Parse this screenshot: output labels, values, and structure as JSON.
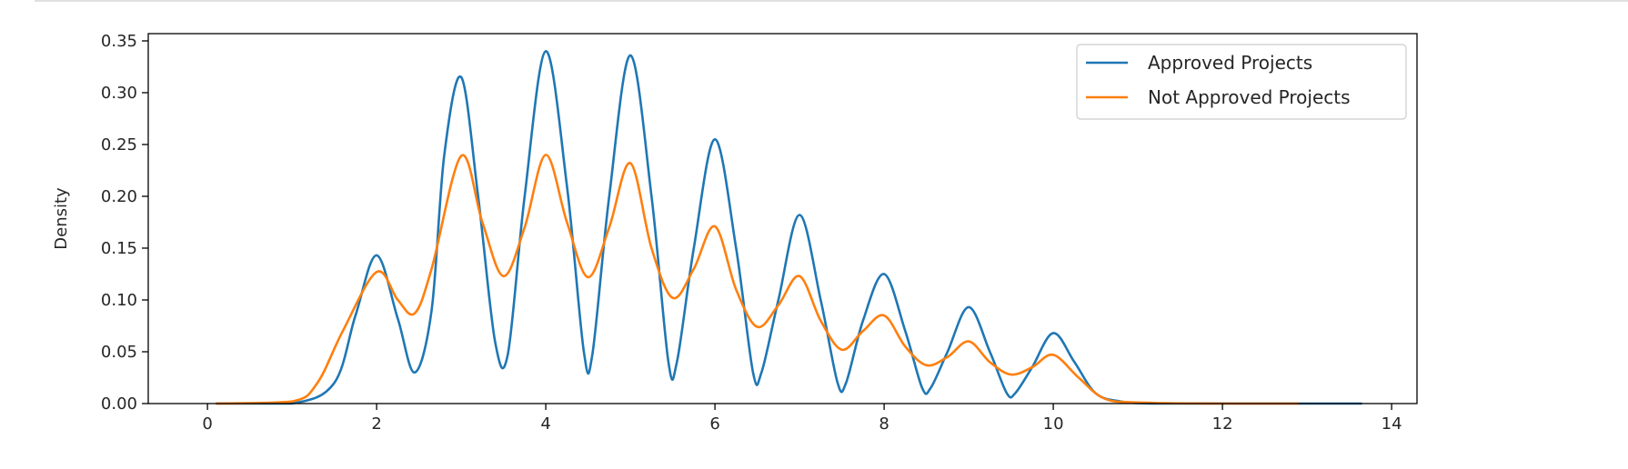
{
  "chart_data": {
    "type": "line",
    "title": "",
    "xlabel": "",
    "ylabel": "Density",
    "xlim": [
      -0.7,
      14.3
    ],
    "ylim": [
      0,
      0.357
    ],
    "xticks": [
      "0",
      "2",
      "4",
      "6",
      "8",
      "10",
      "12",
      "14"
    ],
    "yticks": [
      "0.00",
      "0.05",
      "0.10",
      "0.15",
      "0.20",
      "0.25",
      "0.30",
      "0.35"
    ],
    "legend_position": "top-right",
    "grid": false,
    "series": [
      {
        "name": "Approved Projects",
        "color": "#1f77b4",
        "x": [
          0.1,
          1.0,
          1.5,
          1.75,
          2.0,
          2.25,
          2.45,
          2.65,
          2.8,
          3.0,
          3.2,
          3.4,
          3.55,
          3.75,
          4.0,
          4.25,
          4.45,
          4.55,
          4.75,
          5.0,
          5.25,
          5.45,
          5.55,
          5.75,
          6.0,
          6.25,
          6.45,
          6.55,
          6.75,
          7.0,
          7.25,
          7.45,
          7.55,
          7.75,
          8.0,
          8.25,
          8.45,
          8.55,
          8.75,
          9.0,
          9.25,
          9.45,
          9.55,
          9.75,
          10.0,
          10.25,
          10.5,
          10.8,
          11.2,
          12.0,
          13.0,
          13.65
        ],
        "y": [
          0.0,
          0.0,
          0.02,
          0.085,
          0.143,
          0.082,
          0.03,
          0.09,
          0.24,
          0.315,
          0.2,
          0.06,
          0.047,
          0.2,
          0.34,
          0.21,
          0.05,
          0.047,
          0.2,
          0.336,
          0.2,
          0.04,
          0.04,
          0.15,
          0.255,
          0.15,
          0.03,
          0.03,
          0.1,
          0.182,
          0.1,
          0.02,
          0.02,
          0.08,
          0.125,
          0.07,
          0.015,
          0.015,
          0.05,
          0.093,
          0.05,
          0.01,
          0.01,
          0.035,
          0.068,
          0.04,
          0.01,
          0.002,
          0.0,
          0.0,
          0.0,
          0.0
        ]
      },
      {
        "name": "Not Approved Projects",
        "color": "#ff7f0e",
        "x": [
          0.1,
          1.0,
          1.3,
          1.6,
          2.0,
          2.25,
          2.45,
          2.65,
          3.0,
          3.25,
          3.5,
          3.75,
          4.0,
          4.25,
          4.5,
          4.75,
          5.0,
          5.25,
          5.5,
          5.75,
          6.0,
          6.25,
          6.5,
          6.75,
          7.0,
          7.25,
          7.5,
          7.75,
          8.0,
          8.25,
          8.5,
          8.75,
          9.0,
          9.25,
          9.5,
          9.75,
          10.0,
          10.3,
          10.6,
          11.0,
          12.0,
          12.9
        ],
        "y": [
          0.0,
          0.002,
          0.02,
          0.07,
          0.127,
          0.1,
          0.087,
          0.13,
          0.239,
          0.175,
          0.123,
          0.17,
          0.24,
          0.175,
          0.122,
          0.17,
          0.232,
          0.15,
          0.102,
          0.13,
          0.171,
          0.11,
          0.074,
          0.095,
          0.123,
          0.08,
          0.052,
          0.07,
          0.085,
          0.055,
          0.037,
          0.045,
          0.06,
          0.04,
          0.028,
          0.035,
          0.047,
          0.025,
          0.005,
          0.001,
          0.0,
          0.0
        ]
      }
    ]
  }
}
